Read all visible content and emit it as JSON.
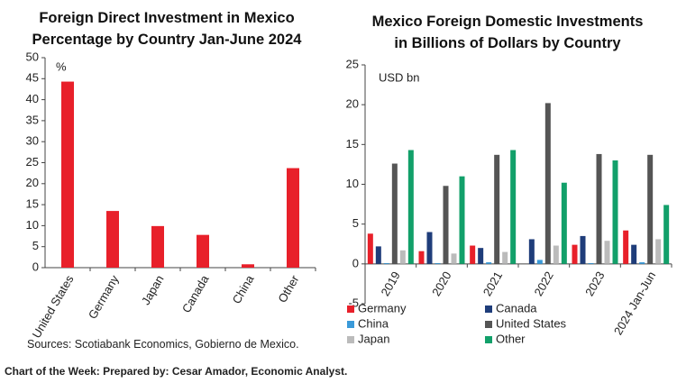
{
  "chart_data": [
    {
      "type": "bar",
      "title": "Foreign Direct Investment in Mexico\nPercentage by Country Jan-June 2024",
      "annotation": "%",
      "categories": [
        "United States",
        "Germany",
        "Japan",
        "Canada",
        "China",
        "Other"
      ],
      "values": [
        44.3,
        13.5,
        9.9,
        7.8,
        0.8,
        23.7
      ],
      "color": "#e8202a",
      "ylim": [
        0,
        50
      ],
      "yticks": [
        0,
        5,
        10,
        15,
        20,
        25,
        30,
        35,
        40,
        45,
        50
      ],
      "grid": false
    },
    {
      "type": "grouped_bar",
      "title": "Mexico Foreign Domestic Investments\nin Billions of Dollars by Country",
      "annotation": "USD bn",
      "categories": [
        "2019",
        "2020",
        "2021",
        "2022",
        "2023",
        "2024 Jan-Jun"
      ],
      "series": [
        {
          "name": "Germany",
          "color": "#e8202a",
          "values": [
            3.8,
            1.6,
            2.3,
            0,
            2.4,
            4.2
          ]
        },
        {
          "name": "Canada",
          "color": "#1f3d7a",
          "values": [
            2.2,
            4.0,
            2.0,
            3.1,
            3.5,
            2.4
          ]
        },
        {
          "name": "China",
          "color": "#3a9ad9",
          "values": [
            0.1,
            0.1,
            0.2,
            0.5,
            0.1,
            0.2
          ]
        },
        {
          "name": "United States",
          "color": "#555555",
          "values": [
            12.6,
            9.8,
            13.7,
            20.2,
            13.8,
            13.7
          ]
        },
        {
          "name": "Japan",
          "color": "#bbbbbb",
          "values": [
            1.7,
            1.3,
            1.5,
            2.3,
            2.9,
            3.1
          ]
        },
        {
          "name": "Other",
          "color": "#12a06a",
          "values": [
            14.3,
            11.0,
            14.3,
            10.2,
            13.0,
            7.4
          ]
        }
      ],
      "ylim": [
        -5,
        25
      ],
      "yticks": [
        -5,
        0,
        5,
        10,
        15,
        20,
        25
      ],
      "grid": false,
      "legend": "lower left"
    }
  ],
  "source": "Sources: Scotiabank Economics, Gobierno de Mexico.",
  "footer": "Chart of the Week: Prepared by: Cesar Amador, Economic Analyst."
}
